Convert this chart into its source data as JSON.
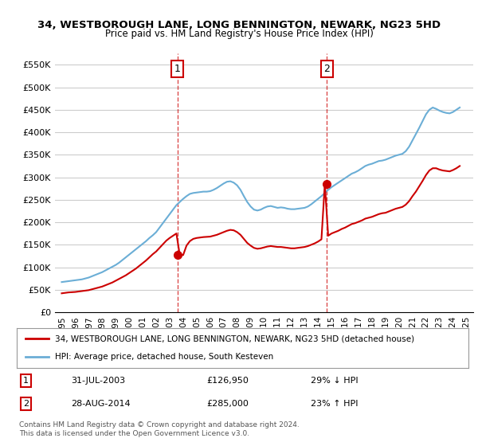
{
  "title": "34, WESTBOROUGH LANE, LONG BENNINGTON, NEWARK, NG23 5HD",
  "subtitle": "Price paid vs. HM Land Registry's House Price Index (HPI)",
  "legend_line1": "34, WESTBOROUGH LANE, LONG BENNINGTON, NEWARK, NG23 5HD (detached house)",
  "legend_line2": "HPI: Average price, detached house, South Kesteven",
  "annotation1_label": "1",
  "annotation1_date": "31-JUL-2003",
  "annotation1_price": "£126,950",
  "annotation1_hpi": "29% ↓ HPI",
  "annotation2_label": "2",
  "annotation2_date": "28-AUG-2014",
  "annotation2_price": "£285,000",
  "annotation2_hpi": "23% ↑ HPI",
  "footnote": "Contains HM Land Registry data © Crown copyright and database right 2024.\nThis data is licensed under the Open Government Licence v3.0.",
  "sale1_x": 2003.58,
  "sale1_y": 126950,
  "sale2_x": 2014.66,
  "sale2_y": 285000,
  "ylim": [
    0,
    575000
  ],
  "xlim": [
    1994.5,
    2025.5
  ],
  "yticks": [
    0,
    50000,
    100000,
    150000,
    200000,
    250000,
    300000,
    350000,
    400000,
    450000,
    500000,
    550000
  ],
  "xticks": [
    1995,
    1996,
    1997,
    1998,
    1999,
    2000,
    2001,
    2002,
    2003,
    2004,
    2005,
    2006,
    2007,
    2008,
    2009,
    2010,
    2011,
    2012,
    2013,
    2014,
    2015,
    2016,
    2017,
    2018,
    2019,
    2020,
    2021,
    2022,
    2023,
    2024,
    2025
  ],
  "hpi_color": "#6baed6",
  "price_color": "#cc0000",
  "vline_color": "#cc0000",
  "bg_color": "#ffffff",
  "grid_color": "#cccccc",
  "hpi_data_x": [
    1995.0,
    1995.25,
    1995.5,
    1995.75,
    1996.0,
    1996.25,
    1996.5,
    1996.75,
    1997.0,
    1997.25,
    1997.5,
    1997.75,
    1998.0,
    1998.25,
    1998.5,
    1998.75,
    1999.0,
    1999.25,
    1999.5,
    1999.75,
    2000.0,
    2000.25,
    2000.5,
    2000.75,
    2001.0,
    2001.25,
    2001.5,
    2001.75,
    2002.0,
    2002.25,
    2002.5,
    2002.75,
    2003.0,
    2003.25,
    2003.5,
    2003.75,
    2004.0,
    2004.25,
    2004.5,
    2004.75,
    2005.0,
    2005.25,
    2005.5,
    2005.75,
    2006.0,
    2006.25,
    2006.5,
    2006.75,
    2007.0,
    2007.25,
    2007.5,
    2007.75,
    2008.0,
    2008.25,
    2008.5,
    2008.75,
    2009.0,
    2009.25,
    2009.5,
    2009.75,
    2010.0,
    2010.25,
    2010.5,
    2010.75,
    2011.0,
    2011.25,
    2011.5,
    2011.75,
    2012.0,
    2012.25,
    2012.5,
    2012.75,
    2013.0,
    2013.25,
    2013.5,
    2013.75,
    2014.0,
    2014.25,
    2014.5,
    2014.75,
    2015.0,
    2015.25,
    2015.5,
    2015.75,
    2016.0,
    2016.25,
    2016.5,
    2016.75,
    2017.0,
    2017.25,
    2017.5,
    2017.75,
    2018.0,
    2018.25,
    2018.5,
    2018.75,
    2019.0,
    2019.25,
    2019.5,
    2019.75,
    2020.0,
    2020.25,
    2020.5,
    2020.75,
    2021.0,
    2021.25,
    2021.5,
    2021.75,
    2022.0,
    2022.25,
    2022.5,
    2022.75,
    2023.0,
    2023.25,
    2023.5,
    2023.75,
    2024.0,
    2024.25,
    2024.5
  ],
  "hpi_data_y": [
    67000,
    68000,
    69000,
    70000,
    71000,
    72000,
    73000,
    75000,
    77000,
    80000,
    83000,
    86000,
    89000,
    93000,
    97000,
    101000,
    105000,
    110000,
    116000,
    122000,
    128000,
    134000,
    140000,
    146000,
    152000,
    158000,
    165000,
    171000,
    178000,
    188000,
    198000,
    208000,
    218000,
    228000,
    238000,
    245000,
    252000,
    258000,
    263000,
    265000,
    266000,
    267000,
    268000,
    268000,
    269000,
    272000,
    276000,
    281000,
    286000,
    290000,
    291000,
    288000,
    282000,
    272000,
    258000,
    245000,
    235000,
    228000,
    226000,
    228000,
    232000,
    235000,
    236000,
    234000,
    232000,
    233000,
    232000,
    230000,
    229000,
    229000,
    230000,
    231000,
    232000,
    235000,
    240000,
    246000,
    252000,
    258000,
    265000,
    272000,
    278000,
    283000,
    288000,
    293000,
    298000,
    303000,
    308000,
    311000,
    315000,
    320000,
    325000,
    328000,
    330000,
    333000,
    336000,
    337000,
    339000,
    342000,
    345000,
    348000,
    350000,
    352000,
    358000,
    368000,
    382000,
    396000,
    410000,
    425000,
    440000,
    450000,
    455000,
    452000,
    448000,
    445000,
    443000,
    442000,
    445000,
    450000,
    455000
  ],
  "price_data_x": [
    1995.0,
    1995.25,
    1995.5,
    1995.75,
    1996.0,
    1996.25,
    1996.5,
    1996.75,
    1997.0,
    1997.25,
    1997.5,
    1997.75,
    1998.0,
    1998.25,
    1998.5,
    1998.75,
    1999.0,
    1999.25,
    1999.5,
    1999.75,
    2000.0,
    2000.25,
    2000.5,
    2000.75,
    2001.0,
    2001.25,
    2001.5,
    2001.75,
    2002.0,
    2002.25,
    2002.5,
    2002.75,
    2003.0,
    2003.25,
    2003.5,
    2003.75,
    2004.0,
    2004.25,
    2004.5,
    2004.75,
    2005.0,
    2005.25,
    2005.5,
    2005.75,
    2006.0,
    2006.25,
    2006.5,
    2006.75,
    2007.0,
    2007.25,
    2007.5,
    2007.75,
    2008.0,
    2008.25,
    2008.5,
    2008.75,
    2009.0,
    2009.25,
    2009.5,
    2009.75,
    2010.0,
    2010.25,
    2010.5,
    2010.75,
    2011.0,
    2011.25,
    2011.5,
    2011.75,
    2012.0,
    2012.25,
    2012.5,
    2012.75,
    2013.0,
    2013.25,
    2013.5,
    2013.75,
    2014.0,
    2014.25,
    2014.5,
    2014.75,
    2015.0,
    2015.25,
    2015.5,
    2015.75,
    2016.0,
    2016.25,
    2016.5,
    2016.75,
    2017.0,
    2017.25,
    2017.5,
    2017.75,
    2018.0,
    2018.25,
    2018.5,
    2018.75,
    2019.0,
    2019.25,
    2019.5,
    2019.75,
    2020.0,
    2020.25,
    2020.5,
    2020.75,
    2021.0,
    2021.25,
    2021.5,
    2021.75,
    2022.0,
    2022.25,
    2022.5,
    2022.75,
    2023.0,
    2023.25,
    2023.5,
    2023.75,
    2024.0,
    2024.25,
    2024.5
  ],
  "price_data_y_raw": [
    42000,
    43000,
    44000,
    44500,
    45000,
    46000,
    47000,
    48000,
    49000,
    51000,
    53000,
    55000,
    57000,
    60000,
    63000,
    66000,
    70000,
    74000,
    78000,
    82000,
    87000,
    92000,
    97000,
    103000,
    109000,
    115000,
    122000,
    129000,
    135000,
    143000,
    151000,
    159000,
    165000,
    170000,
    175000,
    126950,
    126950,
    148000,
    158000,
    163000,
    165000,
    166000,
    167000,
    167500,
    168000,
    170000,
    172000,
    175000,
    178000,
    181000,
    183000,
    182000,
    178000,
    172000,
    163000,
    154000,
    148000,
    143000,
    141000,
    142000,
    144000,
    146000,
    147000,
    146000,
    145000,
    145000,
    144000,
    143000,
    142000,
    142000,
    143000,
    144000,
    145000,
    147000,
    150000,
    153000,
    157000,
    162000,
    285000,
    170000,
    175000,
    178000,
    181000,
    185000,
    188000,
    192000,
    196000,
    198000,
    201000,
    204000,
    208000,
    210000,
    212000,
    215000,
    218000,
    220000,
    221000,
    224000,
    227000,
    230000,
    232000,
    234000,
    239000,
    247000,
    258000,
    268000,
    280000,
    292000,
    305000,
    315000,
    320000,
    320000,
    317000,
    315000,
    314000,
    313000,
    316000,
    320000,
    325000
  ]
}
